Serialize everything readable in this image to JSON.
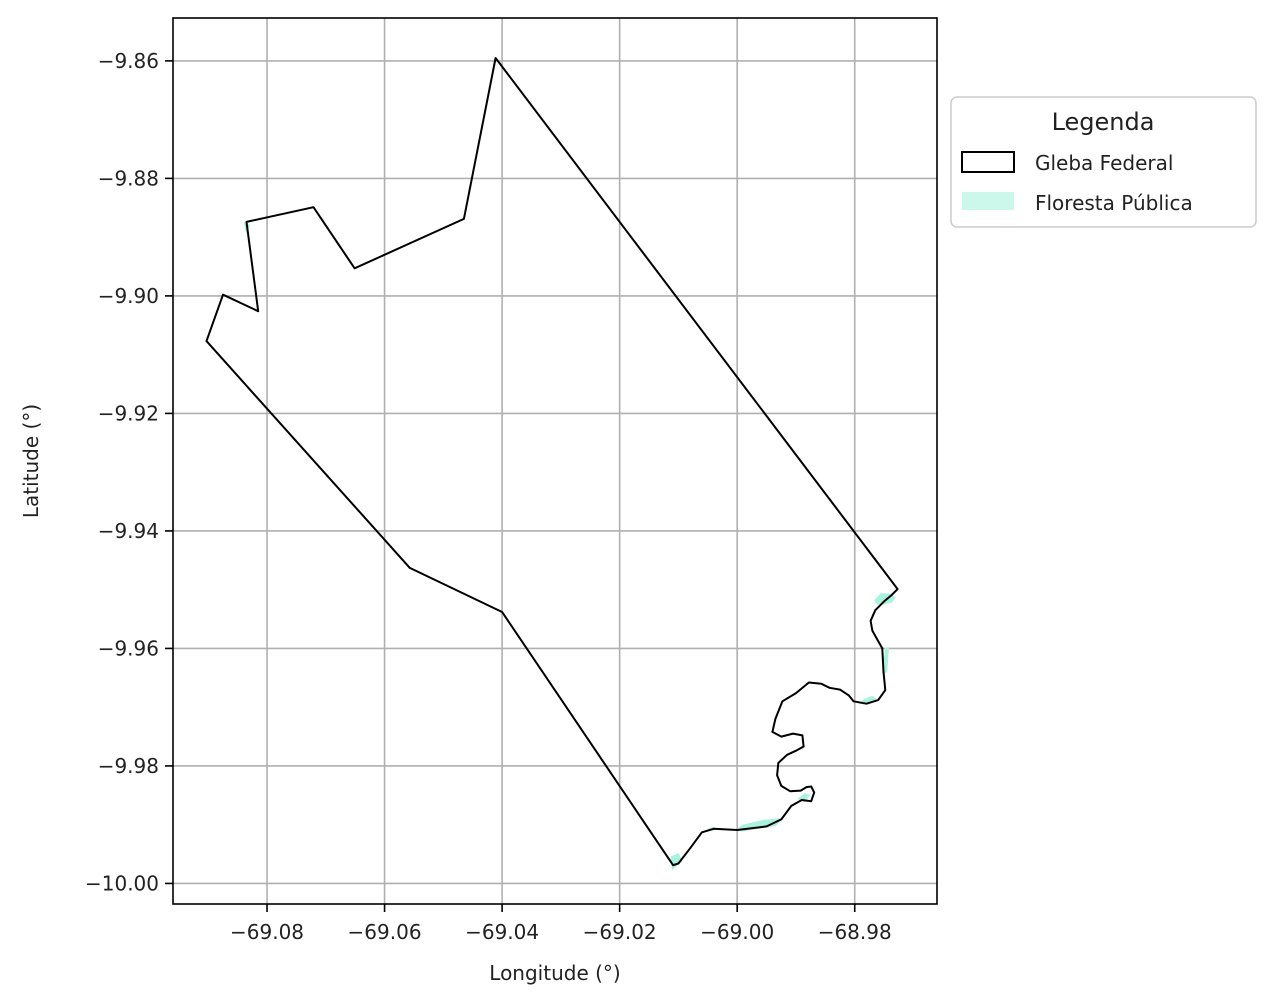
{
  "chart_data": {
    "type": "map",
    "xlabel": "Longitude (°)",
    "ylabel": "Latitude (°)",
    "xlim": [
      -69.096,
      -68.966
    ],
    "ylim": [
      -10.0035,
      -9.8527
    ],
    "xticks": [
      -69.08,
      -69.06,
      -69.04,
      -69.02,
      -69.0,
      -68.98
    ],
    "xtick_labels": [
      "−69.08",
      "−69.06",
      "−69.04",
      "−69.02",
      "−69.00",
      "−68.98"
    ],
    "yticks": [
      -9.86,
      -9.88,
      -9.9,
      -9.92,
      -9.94,
      -9.96,
      -9.98,
      -10.0
    ],
    "ytick_labels": [
      "−9.86",
      "−9.88",
      "−9.90",
      "−9.92",
      "−9.94",
      "−9.96",
      "−9.98",
      "−10.00"
    ],
    "grid": true,
    "legend": {
      "title": "Legenda",
      "placement": "outside-right-top",
      "items": [
        {
          "label": "Gleba Federal",
          "style": "outline",
          "color": "#000000"
        },
        {
          "label": "Floresta Pública",
          "style": "fill",
          "color": "#aaf2de"
        }
      ]
    },
    "layers": [
      {
        "name": "Gleba Federal",
        "kind": "polygon-outline",
        "color": "#000000",
        "coordinates": [
          [
            -69.0411,
            -9.8595
          ],
          [
            -69.0465,
            -9.8869
          ],
          [
            -69.0651,
            -9.8953
          ],
          [
            -69.0721,
            -9.8849
          ],
          [
            -69.0835,
            -9.8874
          ],
          [
            -69.0815,
            -9.9026
          ],
          [
            -69.0875,
            -9.8998
          ],
          [
            -69.0903,
            -9.9077
          ],
          [
            -69.0557,
            -9.9463
          ],
          [
            -69.04,
            -9.9538
          ],
          [
            -69.0109,
            -9.9969
          ],
          [
            -69.01,
            -9.9966
          ],
          [
            -69.008,
            -9.994
          ],
          [
            -69.006,
            -9.9913
          ],
          [
            -69.004,
            -9.9907
          ],
          [
            -69.0,
            -9.9909
          ],
          [
            -68.995,
            -9.9903
          ],
          [
            -68.9925,
            -9.9891
          ],
          [
            -68.9908,
            -9.9868
          ],
          [
            -68.989,
            -9.9858
          ],
          [
            -68.9874,
            -9.986
          ],
          [
            -68.9869,
            -9.9845
          ],
          [
            -68.9874,
            -9.9835
          ],
          [
            -68.9882,
            -9.9836
          ],
          [
            -68.9892,
            -9.9842
          ],
          [
            -68.991,
            -9.9843
          ],
          [
            -68.9925,
            -9.9834
          ],
          [
            -68.9932,
            -9.9816
          ],
          [
            -68.993,
            -9.9795
          ],
          [
            -68.9915,
            -9.9781
          ],
          [
            -68.99,
            -9.9774
          ],
          [
            -68.9887,
            -9.9767
          ],
          [
            -68.9889,
            -9.9748
          ],
          [
            -68.9905,
            -9.9745
          ],
          [
            -68.9925,
            -9.975
          ],
          [
            -68.994,
            -9.9742
          ],
          [
            -68.9935,
            -9.972
          ],
          [
            -68.9923,
            -9.969
          ],
          [
            -68.99,
            -9.9676
          ],
          [
            -68.9878,
            -9.9658
          ],
          [
            -68.9857,
            -9.966
          ],
          [
            -68.9843,
            -9.9667
          ],
          [
            -68.9825,
            -9.967
          ],
          [
            -68.981,
            -9.968
          ],
          [
            -68.9802,
            -9.969
          ],
          [
            -68.978,
            -9.9694
          ],
          [
            -68.976,
            -9.9688
          ],
          [
            -68.9748,
            -9.9671
          ],
          [
            -68.9751,
            -9.964
          ],
          [
            -68.9753,
            -9.96
          ],
          [
            -68.977,
            -9.957
          ],
          [
            -68.9773,
            -9.9553
          ],
          [
            -68.9765,
            -9.9535
          ],
          [
            -68.975,
            -9.952
          ],
          [
            -68.9737,
            -9.9509
          ],
          [
            -68.9727,
            -9.9499
          ],
          [
            -69.0411,
            -9.8595
          ]
        ]
      },
      {
        "name": "Floresta Pública",
        "kind": "polygon-fill",
        "color": "#aaf2de",
        "polygons": [
          [
            [
              -68.9765,
              -9.9518
            ],
            [
              -68.9755,
              -9.9507
            ],
            [
              -68.974,
              -9.9508
            ],
            [
              -68.9732,
              -9.9514
            ],
            [
              -68.9738,
              -9.9521
            ],
            [
              -68.9752,
              -9.9524
            ],
            [
              -68.9762,
              -9.9524
            ]
          ],
          [
            [
              -68.9752,
              -9.964
            ],
            [
              -68.9747,
              -9.96
            ],
            [
              -68.9743,
              -9.96
            ],
            [
              -68.9746,
              -9.964
            ]
          ],
          [
            [
              -68.979,
              -9.9693
            ],
            [
              -68.9775,
              -9.9692
            ],
            [
              -68.9765,
              -9.9686
            ],
            [
              -68.977,
              -9.9682
            ],
            [
              -68.9785,
              -9.9688
            ]
          ],
          [
            [
              -68.9935,
              -9.9901
            ],
            [
              -68.9925,
              -9.989
            ],
            [
              -68.9955,
              -9.9893
            ],
            [
              -68.999,
              -9.9901
            ],
            [
              -69.0,
              -9.9909
            ],
            [
              -68.999,
              -9.991
            ]
          ],
          [
            [
              -68.9895,
              -9.9856
            ],
            [
              -68.9885,
              -9.9848
            ],
            [
              -68.9878,
              -9.985
            ],
            [
              -68.9886,
              -9.986
            ]
          ],
          [
            [
              -69.011,
              -9.9975
            ],
            [
              -69.0112,
              -9.9955
            ],
            [
              -69.01,
              -9.995
            ],
            [
              -69.0095,
              -9.9962
            ]
          ],
          [
            [
              -69.005,
              -9.9908
            ],
            [
              -69.004,
              -9.9905
            ],
            [
              -69.004,
              -9.9909
            ]
          ],
          [
            [
              -69.0838,
              -9.8876
            ],
            [
              -69.083,
              -9.888
            ],
            [
              -69.0835,
              -9.889
            ]
          ]
        ]
      }
    ]
  }
}
